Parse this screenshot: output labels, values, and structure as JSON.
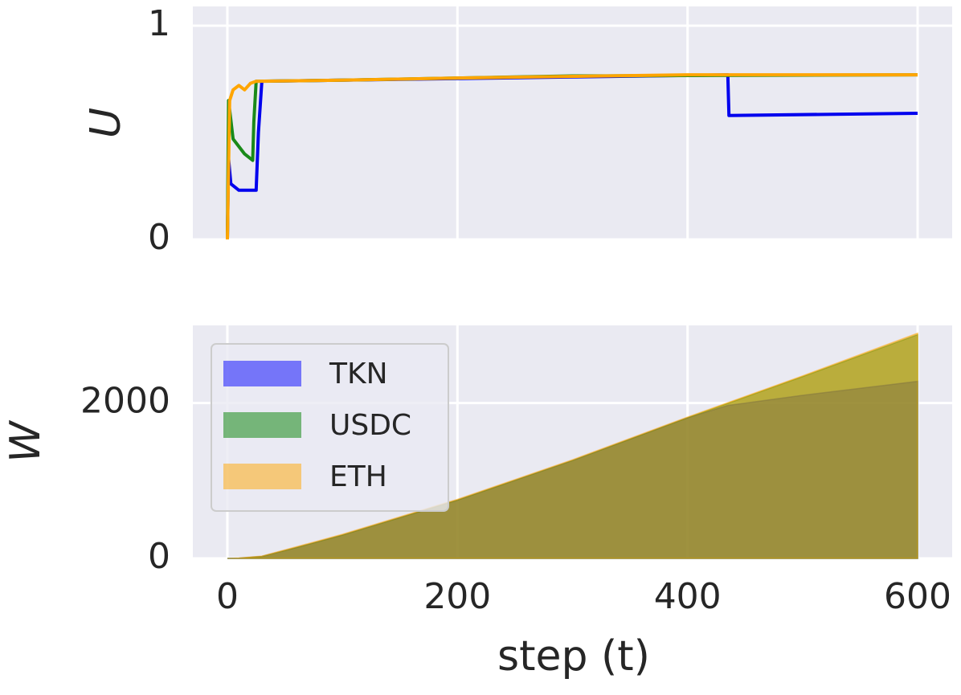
{
  "chart_data": [
    {
      "type": "line",
      "ylabel": "U",
      "xlim": [
        -30,
        630
      ],
      "xticks": [
        0,
        200,
        400,
        600
      ],
      "ylim": [
        0,
        1.09
      ],
      "yticks": [
        0,
        1
      ],
      "grid": true,
      "series": [
        {
          "name": "TKN",
          "color": "#0000ee",
          "x": [
            0,
            1,
            3,
            10,
            25,
            27,
            30,
            100,
            300,
            435,
            436,
            600
          ],
          "values": [
            0,
            0.38,
            0.26,
            0.23,
            0.23,
            0.5,
            0.74,
            0.745,
            0.76,
            0.77,
            0.58,
            0.59
          ]
        },
        {
          "name": "USDC",
          "color": "#1a8a1a",
          "x": [
            0,
            1,
            5,
            15,
            22,
            23,
            25,
            100,
            300,
            600
          ],
          "values": [
            0,
            0.65,
            0.47,
            0.4,
            0.37,
            0.55,
            0.74,
            0.745,
            0.765,
            0.77
          ]
        },
        {
          "name": "ETH",
          "color": "#ffa500",
          "x": [
            0,
            2,
            5,
            10,
            15,
            20,
            25,
            100,
            200,
            400,
            600
          ],
          "values": [
            0,
            0.65,
            0.7,
            0.72,
            0.7,
            0.73,
            0.74,
            0.745,
            0.755,
            0.77,
            0.77
          ]
        }
      ]
    },
    {
      "type": "area",
      "ylabel": "W",
      "xlabel": "step (t)",
      "xlim": [
        -30,
        630
      ],
      "xticks": [
        0,
        200,
        400,
        600
      ],
      "ylim": [
        0,
        3000
      ],
      "yticks": [
        0,
        2000
      ],
      "grid": true,
      "legend": "upper left",
      "series": [
        {
          "name": "TKN",
          "color": "#0000ff",
          "x": [
            0,
            10,
            30,
            60,
            100,
            200,
            300,
            400,
            435,
            500,
            600
          ],
          "values": [
            0,
            3,
            25,
            140,
            300,
            750,
            1260,
            1810,
            1970,
            2100,
            2280
          ]
        },
        {
          "name": "USDC",
          "color": "#008000",
          "x": [
            0,
            10,
            30,
            60,
            100,
            200,
            300,
            400,
            500,
            600
          ],
          "values": [
            0,
            3,
            25,
            140,
            300,
            750,
            1260,
            1810,
            2340,
            2880
          ]
        },
        {
          "name": "ETH",
          "color": "#ffa500",
          "x": [
            0,
            10,
            30,
            60,
            100,
            200,
            300,
            400,
            500,
            600
          ],
          "values": [
            0,
            5,
            30,
            150,
            310,
            760,
            1270,
            1820,
            2350,
            2900
          ]
        }
      ]
    }
  ]
}
